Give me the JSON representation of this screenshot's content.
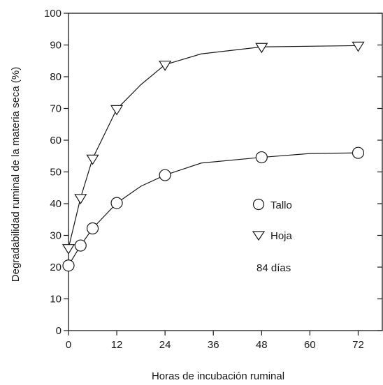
{
  "chart_data": {
    "type": "line",
    "xlabel": "Horas de incubación ruminal",
    "ylabel": "Degradabilidad ruminal de la materia seca (%)",
    "xlim": [
      0,
      78
    ],
    "ylim": [
      0,
      100
    ],
    "xticks": [
      0,
      12,
      24,
      36,
      48,
      60,
      72
    ],
    "yticks": [
      0,
      10,
      20,
      30,
      40,
      50,
      60,
      70,
      80,
      90,
      100
    ],
    "grid": false,
    "legend_position": "right",
    "series": [
      {
        "name": "Tallo",
        "marker": "circle",
        "color": "#1a1a1a",
        "line_x": [
          0,
          3,
          6,
          12,
          18,
          24,
          33,
          48,
          60,
          72
        ],
        "line_y": [
          20.5,
          26.8,
          32.2,
          40.2,
          45.5,
          49.0,
          52.8,
          54.6,
          55.8,
          56.0
        ],
        "x": [
          0,
          3,
          6,
          12,
          24,
          48,
          72
        ],
        "y": [
          20.5,
          26.8,
          32.2,
          40.2,
          49.0,
          54.6,
          56.0
        ]
      },
      {
        "name": "Hoja",
        "marker": "triangle-down",
        "color": "#1a1a1a",
        "line_x": [
          0,
          3,
          6,
          12,
          18,
          24,
          33,
          48,
          72
        ],
        "line_y": [
          26.0,
          41.8,
          54.2,
          69.8,
          77.5,
          83.8,
          87.2,
          89.4,
          89.8
        ],
        "x": [
          0,
          3,
          6,
          12,
          24,
          48,
          72
        ],
        "y": [
          26.0,
          41.8,
          54.2,
          69.8,
          83.8,
          89.4,
          89.8
        ]
      }
    ],
    "annotation": "84 días"
  }
}
